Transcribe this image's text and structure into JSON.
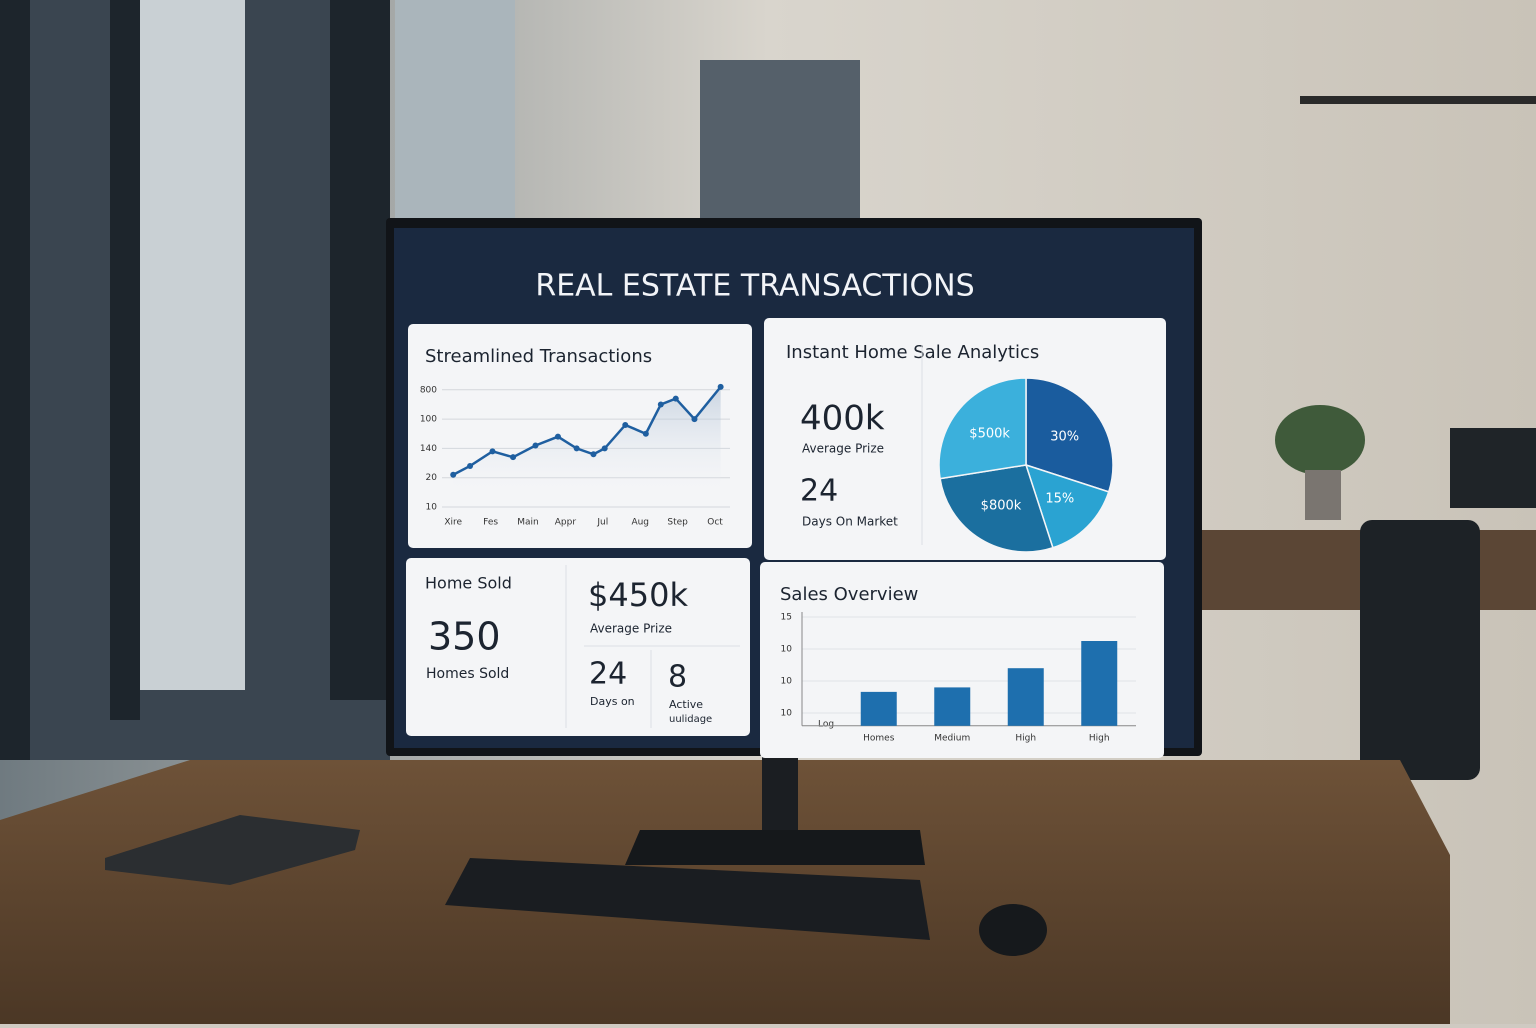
{
  "dashboard": {
    "title": "REAL ESTATE TRANSACTIONS"
  },
  "line_panel": {
    "title": "Streamlined Transactions",
    "chart": {
      "type": "line",
      "x": [
        0,
        0.45,
        1.05,
        1.6,
        2.2,
        2.8,
        3.3,
        3.75,
        4.05,
        4.6,
        5.15,
        5.55,
        5.95,
        6.45,
        7.15
      ],
      "values": [
        1.1,
        1.4,
        1.9,
        1.7,
        2.1,
        2.4,
        2.0,
        1.8,
        2.0,
        2.8,
        2.5,
        3.5,
        3.7,
        3.0,
        4.1
      ],
      "xlim": [
        -0.3,
        7.4
      ],
      "xticks": [
        {
          "value": 0,
          "label": "Xire"
        },
        {
          "value": 1,
          "label": "Fes"
        },
        {
          "value": 2,
          "label": "Main"
        },
        {
          "value": 3,
          "label": "Appr"
        },
        {
          "value": 4,
          "label": "Jul"
        },
        {
          "value": 5,
          "label": "Aug"
        },
        {
          "value": 6,
          "label": "Step"
        },
        {
          "value": 7,
          "label": "Oct"
        }
      ],
      "ylim": [
        0,
        4.3
      ],
      "yticks": [
        {
          "value": 0,
          "label": "10"
        },
        {
          "value": 1,
          "label": "20"
        },
        {
          "value": 2,
          "label": "140"
        },
        {
          "value": 3,
          "label": "100"
        },
        {
          "value": 4,
          "label": "800"
        }
      ],
      "color": "#1f5fa0",
      "grid": true
    }
  },
  "pie_panel": {
    "title": "Instant Home Sale Analytics",
    "kpis": [
      {
        "value": "400k",
        "label": "Average Prize"
      },
      {
        "value": "24",
        "label": "Days On Market"
      }
    ],
    "chart": {
      "type": "pie",
      "categories": [
        null,
        null,
        "$800k",
        "$500k"
      ],
      "values": [
        30,
        15,
        27.5,
        27.5
      ],
      "value_labels": [
        "30%",
        "15%",
        null,
        null
      ],
      "colors": [
        "#1a5c9e",
        "#2aa3d2",
        "#1b6f9f",
        "#3bb0dc"
      ]
    }
  },
  "kpi_panel": {
    "title": "Home Sold",
    "homes": {
      "value": "350",
      "label": "Homes Sold"
    },
    "price": {
      "value": "$450k",
      "label": "Average Prize"
    },
    "days": {
      "value": "24",
      "label": "Days on"
    },
    "active": {
      "value": "8",
      "label": "Active",
      "sublabel": "uulidage"
    }
  },
  "bar_panel": {
    "title": "Sales Overview",
    "chart": {
      "type": "bar",
      "x_label": "Log",
      "categories": [
        "Homes",
        "Medium",
        "High",
        "High"
      ],
      "values": [
        0.66,
        0.8,
        1.4,
        2.25
      ],
      "ylim": [
        -0.4,
        3
      ],
      "yticks": [
        {
          "value": 0,
          "label": "10"
        },
        {
          "value": 1,
          "label": "10"
        },
        {
          "value": 2,
          "label": "10"
        },
        {
          "value": 3,
          "label": "15"
        }
      ],
      "color": "#1e6fae",
      "grid": true
    }
  }
}
